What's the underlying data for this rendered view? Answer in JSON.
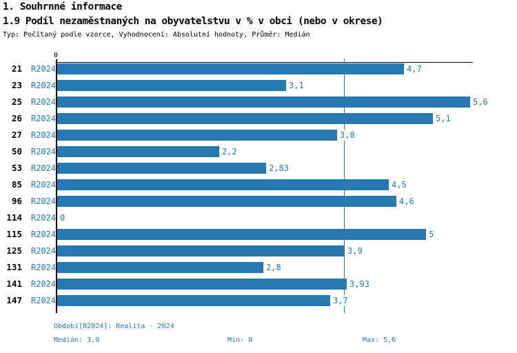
{
  "header": {
    "section_title": "1. Souhrnné informace",
    "chart_title": "1.9 Podíl nezaměstnaných na obyvatelstvu v % v obci (nebo v okrese)",
    "subtitle": "Typ: Počítaný podle vzorce, Vyhodnocení: Absolutní hodnoty, Průměr: Medián"
  },
  "chart_data": {
    "type": "bar",
    "orientation": "horizontal",
    "title": "1.9 Podíl nezaměstnaných na obyvatelstvu v % v obci (nebo v okrese)",
    "series_label": "R2024",
    "categories": [
      "21",
      "23",
      "25",
      "26",
      "27",
      "50",
      "53",
      "85",
      "96",
      "114",
      "115",
      "125",
      "131",
      "141",
      "147"
    ],
    "values": [
      4.7,
      3.1,
      5.6,
      5.1,
      3.8,
      2.2,
      2.83,
      4.5,
      4.6,
      0,
      5,
      3.9,
      2.8,
      3.93,
      3.7
    ],
    "value_labels": [
      "4,7",
      "3,1",
      "5,6",
      "5,1",
      "3,8",
      "2,2",
      "2,83",
      "4,5",
      "4,6",
      "0",
      "5",
      "3,9",
      "2,8",
      "3,93",
      "3,7"
    ],
    "axis": {
      "origin_label": "0",
      "xlim": [
        0,
        5.65
      ],
      "median": 3.9,
      "min": 0,
      "max": 5.6
    },
    "bar_color": "#2878b4",
    "grid": false,
    "legend": false
  },
  "footer": {
    "period": "Období[R2024]: Realita - 2024",
    "median": "Medián: 3,9",
    "min": "Min: 0",
    "max": "Max: 5,6"
  }
}
